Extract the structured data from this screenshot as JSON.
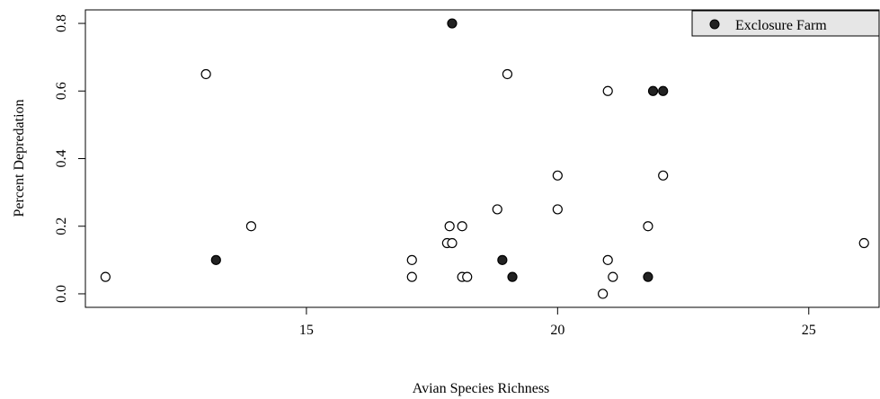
{
  "chart_data": {
    "type": "scatter",
    "title": "",
    "xlabel": "Avian Species Richness",
    "ylabel": "Percent Depredation",
    "xlim": [
      10.6,
      26.4
    ],
    "ylim": [
      -0.04,
      0.84
    ],
    "x_ticks": [
      15,
      20,
      25
    ],
    "x_tick_labels": [
      "15",
      "20",
      "25"
    ],
    "y_ticks": [
      0.0,
      0.2,
      0.4,
      0.6,
      0.8
    ],
    "y_tick_labels": [
      "0.0",
      "0.2",
      "0.4",
      "0.6",
      "0.8"
    ],
    "grid": false,
    "legend_position": "top-right",
    "series": [
      {
        "marker": "open-circle",
        "color": "#000000",
        "points": [
          {
            "x": 11.0,
            "y": 0.05
          },
          {
            "x": 13.0,
            "y": 0.65
          },
          {
            "x": 13.9,
            "y": 0.2
          },
          {
            "x": 17.1,
            "y": 0.1
          },
          {
            "x": 17.1,
            "y": 0.05
          },
          {
            "x": 17.8,
            "y": 0.15
          },
          {
            "x": 17.9,
            "y": 0.15
          },
          {
            "x": 17.85,
            "y": 0.2
          },
          {
            "x": 18.1,
            "y": 0.2
          },
          {
            "x": 18.1,
            "y": 0.05
          },
          {
            "x": 18.2,
            "y": 0.05
          },
          {
            "x": 18.8,
            "y": 0.25
          },
          {
            "x": 19.0,
            "y": 0.65
          },
          {
            "x": 20.0,
            "y": 0.35
          },
          {
            "x": 20.0,
            "y": 0.25
          },
          {
            "x": 20.9,
            "y": 0.0
          },
          {
            "x": 21.0,
            "y": 0.6
          },
          {
            "x": 21.0,
            "y": 0.1
          },
          {
            "x": 21.1,
            "y": 0.05
          },
          {
            "x": 21.8,
            "y": 0.2
          },
          {
            "x": 22.1,
            "y": 0.35
          },
          {
            "x": 26.1,
            "y": 0.15
          }
        ]
      },
      {
        "name": "Exclosure Farm",
        "marker": "filled-circle",
        "color": "#222222",
        "points": [
          {
            "x": 13.2,
            "y": 0.1
          },
          {
            "x": 17.9,
            "y": 0.8
          },
          {
            "x": 18.9,
            "y": 0.1
          },
          {
            "x": 19.1,
            "y": 0.05
          },
          {
            "x": 21.8,
            "y": 0.05
          },
          {
            "x": 21.9,
            "y": 0.6
          },
          {
            "x": 22.1,
            "y": 0.6
          }
        ]
      }
    ],
    "legend": {
      "entries": [
        "Exclosure Farm"
      ],
      "background": "#e6e6e6"
    }
  }
}
